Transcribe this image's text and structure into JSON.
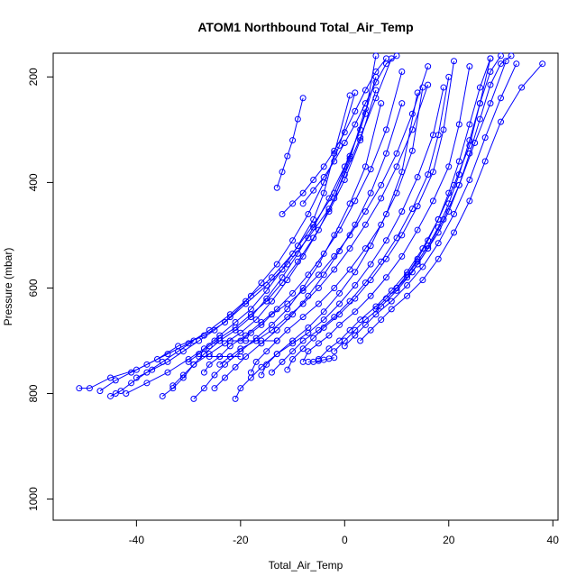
{
  "chart_data": {
    "type": "line",
    "title": "ATOM1 Northbound Total_Air_Temp",
    "xlabel": "Total_Air_Temp",
    "ylabel": "Pressure (mbar)",
    "xlim": [
      -56,
      41
    ],
    "ylim": [
      1040,
      155
    ],
    "y_reversed": true,
    "x_ticks": [
      -40,
      -20,
      0,
      20,
      40
    ],
    "y_ticks": [
      200,
      400,
      600,
      800,
      1000
    ],
    "grid": false,
    "legend": "none",
    "marker": "open-circle",
    "series": [
      {
        "x": [
          -47,
          -44,
          -41,
          -38,
          -34,
          -30,
          -26,
          -22,
          -18,
          -14,
          -10,
          -6,
          -2,
          1,
          4,
          6
        ],
        "y": [
          795,
          775,
          760,
          745,
          725,
          705,
          680,
          650,
          615,
          580,
          535,
          480,
          420,
          350,
          270,
          160
        ]
      },
      {
        "x": [
          -51,
          -49,
          -45,
          -40,
          -36,
          -32,
          -27,
          -23,
          -19,
          -15,
          -11,
          -7,
          -3,
          0,
          3,
          6,
          9
        ],
        "y": [
          790,
          790,
          770,
          755,
          735,
          710,
          690,
          665,
          630,
          595,
          555,
          505,
          450,
          385,
          315,
          240,
          165
        ]
      },
      {
        "x": [
          -42,
          -38,
          -34,
          -30,
          -27,
          -24,
          -21,
          -18,
          -15,
          -12,
          -9,
          -6,
          -4,
          -2,
          1
        ],
        "y": [
          800,
          780,
          760,
          735,
          715,
          690,
          665,
          640,
          605,
          565,
          520,
          470,
          420,
          345,
          235
        ]
      },
      {
        "x": [
          -35,
          -33,
          -31,
          -29,
          -27,
          -24,
          -21,
          -18,
          -15,
          -12,
          -9,
          -6,
          -3,
          0,
          3,
          6
        ],
        "y": [
          805,
          790,
          770,
          745,
          725,
          700,
          680,
          655,
          620,
          580,
          535,
          485,
          430,
          370,
          300,
          200
        ]
      },
      {
        "x": [
          -29,
          -27,
          -25,
          -23,
          -20,
          -17,
          -14,
          -11,
          -8,
          -5,
          -2,
          1,
          4,
          7
        ],
        "y": [
          810,
          790,
          765,
          745,
          720,
          695,
          670,
          640,
          600,
          555,
          500,
          440,
          370,
          250
        ]
      },
      {
        "x": [
          -27,
          -26,
          -24,
          -22,
          -19,
          -16,
          -13,
          -10,
          -7,
          -4,
          -1,
          2,
          5,
          8,
          11
        ],
        "y": [
          760,
          745,
          730,
          710,
          690,
          665,
          640,
          610,
          575,
          535,
          490,
          435,
          375,
          300,
          190
        ]
      },
      {
        "x": [
          -21,
          -20,
          -18,
          -16,
          -13,
          -10,
          -7,
          -4,
          -1,
          2,
          5,
          8,
          11,
          14
        ],
        "y": [
          810,
          790,
          770,
          750,
          725,
          700,
          675,
          645,
          610,
          570,
          520,
          460,
          380,
          230
        ]
      },
      {
        "x": [
          -18,
          -17,
          -15,
          -13,
          -11,
          -8,
          -5,
          -2,
          1,
          4,
          7,
          10,
          13,
          15
        ],
        "y": [
          760,
          740,
          720,
          700,
          680,
          655,
          630,
          600,
          565,
          525,
          480,
          420,
          340,
          220
        ]
      },
      {
        "x": [
          -11,
          -10,
          -8,
          -6,
          -4,
          -1,
          2,
          5,
          8,
          11,
          14,
          17,
          19,
          21
        ],
        "y": [
          755,
          735,
          715,
          695,
          675,
          650,
          620,
          585,
          545,
          500,
          445,
          380,
          300,
          170
        ]
      },
      {
        "x": [
          -8,
          -7,
          -5,
          -3,
          -1,
          2,
          5,
          8,
          11,
          14,
          17,
          20,
          22,
          24
        ],
        "y": [
          740,
          720,
          705,
          690,
          670,
          645,
          615,
          580,
          540,
          490,
          435,
          370,
          290,
          180
        ]
      },
      {
        "x": [
          -5,
          -3,
          -1,
          1,
          3,
          6,
          9,
          12,
          15,
          18,
          21,
          24,
          26,
          28
        ],
        "y": [
          735,
          715,
          700,
          680,
          660,
          635,
          605,
          570,
          525,
          470,
          405,
          330,
          250,
          165
        ]
      },
      {
        "x": [
          -2,
          0,
          2,
          4,
          7,
          10,
          13,
          16,
          19,
          22,
          25,
          28,
          31
        ],
        "y": [
          720,
          700,
          680,
          660,
          635,
          605,
          570,
          525,
          470,
          405,
          325,
          250,
          170
        ]
      },
      {
        "x": [
          0,
          2,
          4,
          6,
          9,
          12,
          15,
          18,
          21,
          24,
          27,
          30,
          33
        ],
        "y": [
          710,
          690,
          670,
          650,
          625,
          595,
          560,
          515,
          460,
          395,
          315,
          240,
          175
        ]
      },
      {
        "x": [
          3,
          5,
          7,
          9,
          12,
          15,
          18,
          21,
          24,
          27,
          30,
          34,
          38
        ],
        "y": [
          700,
          680,
          660,
          640,
          615,
          585,
          545,
          495,
          435,
          360,
          285,
          220,
          175
        ]
      },
      {
        "x": [
          -24,
          -22,
          -20,
          -17,
          -14,
          -11,
          -8,
          -5,
          -2,
          1,
          4,
          7,
          10,
          13,
          16
        ],
        "y": [
          745,
          730,
          715,
          700,
          680,
          655,
          630,
          600,
          565,
          525,
          480,
          430,
          370,
          300,
          215
        ]
      },
      {
        "x": [
          -33,
          -31,
          -29,
          -26,
          -23,
          -20,
          -17,
          -14,
          -11,
          -8,
          -5,
          -2,
          1,
          4
        ],
        "y": [
          785,
          765,
          745,
          725,
          705,
          685,
          660,
          625,
          585,
          540,
          490,
          430,
          355,
          260
        ]
      },
      {
        "x": [
          -40,
          -37,
          -34,
          -31,
          -28,
          -25,
          -22,
          -19,
          -16,
          -13,
          -10,
          -7,
          -4,
          -1,
          2
        ],
        "y": [
          770,
          755,
          740,
          720,
          700,
          680,
          655,
          625,
          590,
          555,
          510,
          460,
          400,
          330,
          230
        ]
      },
      {
        "x": [
          -14,
          -12,
          -10,
          -8,
          -5,
          -2,
          1,
          4,
          7,
          10,
          13,
          16,
          18,
          20
        ],
        "y": [
          760,
          740,
          720,
          700,
          680,
          655,
          625,
          590,
          550,
          505,
          450,
          385,
          310,
          200
        ]
      },
      {
        "x": [
          -16,
          -15,
          -13,
          -10,
          -7,
          -4,
          -1,
          2,
          5,
          8,
          11,
          14,
          17,
          19
        ],
        "y": [
          765,
          745,
          725,
          705,
          685,
          660,
          630,
          595,
          555,
          510,
          455,
          390,
          310,
          220
        ]
      },
      {
        "x": [
          -25,
          -23,
          -21,
          -19,
          -16,
          -13,
          -10,
          -7,
          -4,
          -1,
          2,
          5,
          8,
          11
        ],
        "y": [
          790,
          770,
          750,
          730,
          705,
          680,
          650,
          615,
          575,
          530,
          480,
          420,
          345,
          250
        ]
      },
      {
        "x": [
          -30,
          -28,
          -26,
          -24,
          -21,
          -18,
          -15,
          -12,
          -9,
          -6,
          -3,
          0,
          3,
          6
        ],
        "y": [
          740,
          725,
          710,
          695,
          675,
          650,
          625,
          590,
          550,
          505,
          455,
          395,
          320,
          225
        ]
      },
      {
        "x": [
          -20,
          -18,
          -16,
          -14,
          -11,
          -8,
          -5,
          -2,
          1,
          4,
          7,
          10,
          13,
          16
        ],
        "y": [
          700,
          685,
          670,
          650,
          630,
          605,
          575,
          540,
          500,
          455,
          405,
          345,
          270,
          180
        ]
      },
      {
        "x": [
          6,
          8,
          10,
          12,
          14,
          16,
          18,
          20,
          22,
          24,
          26,
          28
        ],
        "y": [
          640,
          620,
          600,
          575,
          545,
          510,
          470,
          420,
          360,
          290,
          220,
          165
        ]
      },
      {
        "x": [
          8,
          10,
          12,
          14,
          16,
          18,
          20,
          22,
          24,
          26,
          28,
          30
        ],
        "y": [
          620,
          600,
          575,
          550,
          520,
          485,
          440,
          385,
          320,
          250,
          190,
          160
        ]
      },
      {
        "x": [
          10,
          12,
          14,
          16,
          18,
          20,
          22,
          24,
          26,
          28,
          30,
          32
        ],
        "y": [
          600,
          580,
          555,
          525,
          495,
          455,
          405,
          345,
          280,
          215,
          175,
          160
        ]
      },
      {
        "x": [
          -12,
          -10,
          -8,
          -6,
          -4,
          -2,
          0,
          2,
          4,
          6,
          8
        ],
        "y": [
          460,
          440,
          420,
          395,
          370,
          340,
          305,
          265,
          225,
          190,
          165
        ]
      },
      {
        "x": [
          -8,
          -6,
          -4,
          -2,
          0,
          2,
          4,
          6,
          8,
          10
        ],
        "y": [
          440,
          415,
          390,
          360,
          325,
          290,
          250,
          210,
          175,
          160
        ]
      },
      {
        "x": [
          -13,
          -12,
          -11,
          -10,
          -9,
          -8
        ],
        "y": [
          410,
          380,
          350,
          320,
          280,
          240
        ]
      },
      {
        "x": [
          -45,
          -44,
          -43,
          -41,
          -38,
          -35,
          -32,
          -29
        ],
        "y": [
          805,
          800,
          795,
          780,
          760,
          740,
          720,
          700
        ]
      },
      {
        "x": [
          -7,
          -6,
          -5,
          -4,
          -3,
          -2
        ],
        "y": [
          740,
          740,
          738,
          736,
          734,
          732
        ]
      },
      {
        "x": [
          -25,
          -22,
          -19,
          -16,
          -13
        ],
        "y": [
          700,
          700,
          700,
          700,
          700
        ]
      },
      {
        "x": [
          -28,
          -26,
          -24,
          -22,
          -20
        ],
        "y": [
          730,
          730,
          730,
          730,
          730
        ]
      }
    ]
  }
}
